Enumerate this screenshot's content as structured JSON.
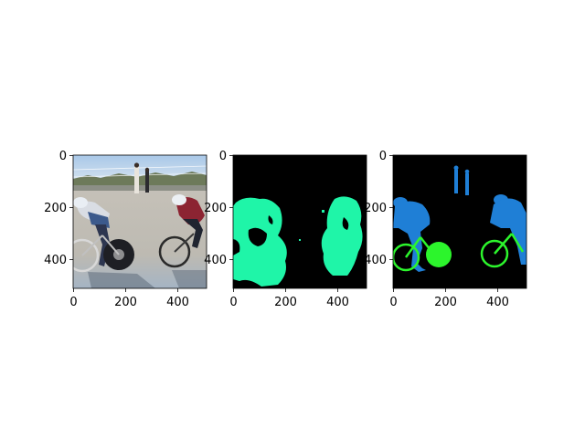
{
  "figure": {
    "panels": [
      {
        "kind": "photo",
        "x_ticks": [
          "0",
          "200",
          "400"
        ],
        "y_ticks": [
          "0",
          "200",
          "400"
        ]
      },
      {
        "kind": "binary-mask",
        "x_ticks": [
          "0",
          "200",
          "400"
        ],
        "y_ticks": [
          "0",
          "200",
          "400"
        ],
        "colors": {
          "background": "#000000",
          "foreground": "#1ff5a8"
        }
      },
      {
        "kind": "instance-mask",
        "x_ticks": [
          "0",
          "200",
          "400"
        ],
        "y_ticks": [
          "0",
          "200",
          "400"
        ],
        "colors": {
          "background": "#000000",
          "person": "#1f7fd6",
          "bicycle": "#2cf52c"
        }
      }
    ]
  }
}
